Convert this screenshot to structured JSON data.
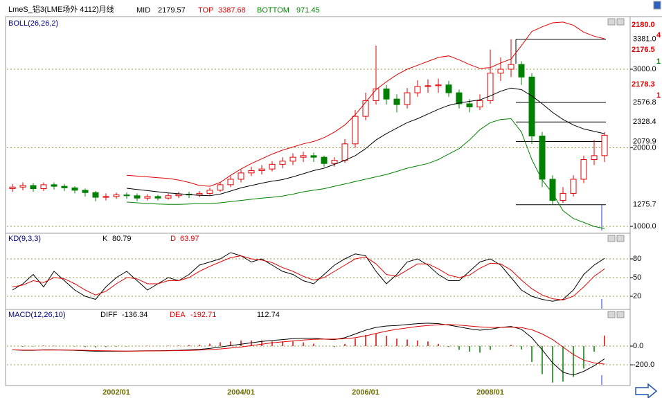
{
  "chart_data": {
    "type": "candlestick",
    "title": "LmeS_铝3(LME场外 4112)月线",
    "categories": [
      null,
      null,
      null,
      null,
      null,
      null,
      null,
      null,
      null,
      null,
      "2002/01",
      null,
      null,
      null,
      null,
      null,
      null,
      null,
      null,
      null,
      null,
      null,
      "2004/01",
      null,
      null,
      null,
      null,
      null,
      null,
      null,
      null,
      null,
      null,
      null,
      "2006/01",
      null,
      null,
      null,
      null,
      null,
      null,
      null,
      null,
      null,
      null,
      null,
      "2008/01",
      null,
      null,
      null,
      null,
      null,
      null,
      null,
      null,
      null,
      null,
      null
    ],
    "open": [
      1480,
      1500,
      1520,
      1480,
      1530,
      1510,
      1490,
      1460,
      1430,
      1370,
      1380,
      1400,
      1390,
      1360,
      1380,
      1360,
      1390,
      1410,
      1400,
      1420,
      1460,
      1530,
      1600,
      1680,
      1710,
      1730,
      1790,
      1830,
      1880,
      1900,
      1880,
      1800,
      1840,
      2050,
      2400,
      2600,
      2750,
      2620,
      2550,
      2700,
      2780,
      2790,
      2800,
      2700,
      2560,
      2520,
      2600,
      2950,
      3000,
      3060,
      2900,
      2150,
      1600,
      1330,
      1420,
      1600,
      1850,
      1900
    ],
    "close": [
      1500,
      1520,
      1480,
      1530,
      1510,
      1490,
      1460,
      1430,
      1370,
      1380,
      1400,
      1390,
      1360,
      1380,
      1360,
      1390,
      1410,
      1400,
      1420,
      1460,
      1530,
      1600,
      1680,
      1710,
      1730,
      1790,
      1830,
      1880,
      1900,
      1880,
      1800,
      1840,
      2050,
      2400,
      2600,
      2750,
      2620,
      2550,
      2700,
      2780,
      2790,
      2800,
      2700,
      2560,
      2520,
      2600,
      2950,
      3000,
      3060,
      2900,
      2150,
      1600,
      1330,
      1420,
      1600,
      1850,
      1900,
      2160
    ],
    "high": [
      1540,
      1560,
      1550,
      1560,
      1560,
      1540,
      1510,
      1480,
      1450,
      1420,
      1430,
      1430,
      1420,
      1410,
      1400,
      1420,
      1440,
      1440,
      1450,
      1490,
      1560,
      1640,
      1720,
      1760,
      1780,
      1830,
      1880,
      1930,
      1950,
      1940,
      1900,
      1880,
      2110,
      2480,
      2700,
      3300,
      2800,
      2680,
      2760,
      2860,
      2870,
      2880,
      2850,
      2740,
      2620,
      2680,
      3250,
      3150,
      3381,
      3100,
      2950,
      2200,
      1650,
      1500,
      1650,
      1900,
      2100,
      2200
    ],
    "low": [
      1440,
      1460,
      1440,
      1450,
      1470,
      1450,
      1420,
      1380,
      1320,
      1330,
      1350,
      1350,
      1320,
      1330,
      1330,
      1340,
      1360,
      1360,
      1370,
      1400,
      1440,
      1500,
      1560,
      1640,
      1660,
      1700,
      1740,
      1780,
      1820,
      1820,
      1760,
      1760,
      1810,
      2000,
      2350,
      2550,
      2550,
      2450,
      2500,
      2650,
      2700,
      2700,
      2650,
      2500,
      2450,
      2480,
      2560,
      2850,
      2900,
      2800,
      2050,
      1500,
      1276,
      1300,
      1380,
      1550,
      1780,
      1820
    ],
    "up_color": "#e00000",
    "down_color": "#008000",
    "ylim": [
      930,
      3634
    ],
    "yticks": [
      {
        "value": 1000,
        "label": "1000.0"
      },
      {
        "value": 2000,
        "label": "2000.0"
      },
      {
        "value": 3000,
        "label": "3000.0"
      }
    ],
    "levels": [
      {
        "value": 3381.0,
        "label": "3381.0"
      },
      {
        "value": 2576.8,
        "label": "2576.8"
      },
      {
        "value": 2328.4,
        "label": "2328.4"
      },
      {
        "value": 2079.9,
        "label": "2079.9"
      },
      {
        "value": 1275.7,
        "label": "1275.7"
      }
    ],
    "grid": true,
    "boll": {
      "title": "BOLL(26,26,2)",
      "series": [
        {
          "name": "TOP",
          "color": "#e00000",
          "values": [
            null,
            null,
            null,
            null,
            null,
            null,
            null,
            null,
            null,
            null,
            null,
            1650,
            1640,
            1630,
            1620,
            1610,
            1590,
            1560,
            1520,
            1510,
            1560,
            1650,
            1730,
            1800,
            1860,
            1920,
            1970,
            2010,
            2050,
            2080,
            2130,
            2200,
            2290,
            2420,
            2580,
            2740,
            2840,
            2930,
            3000,
            3050,
            3100,
            3150,
            3170,
            3120,
            3060,
            3010,
            3020,
            3080,
            3130,
            3300,
            3480,
            3540,
            3590,
            3600,
            3560,
            3470,
            3420,
            3387.68
          ]
        },
        {
          "name": "MID",
          "color": "#000000",
          "values": [
            null,
            null,
            null,
            null,
            null,
            null,
            null,
            null,
            null,
            null,
            null,
            1485,
            1470,
            1455,
            1440,
            1425,
            1415,
            1405,
            1395,
            1390,
            1410,
            1450,
            1490,
            1520,
            1550,
            1575,
            1595,
            1630,
            1670,
            1710,
            1740,
            1790,
            1840,
            1900,
            1990,
            2100,
            2180,
            2250,
            2320,
            2370,
            2430,
            2490,
            2540,
            2570,
            2590,
            2610,
            2660,
            2720,
            2760,
            2740,
            2660,
            2560,
            2450,
            2360,
            2290,
            2240,
            2210,
            2179.57
          ]
        },
        {
          "name": "BOTTOM",
          "color": "#008000",
          "values": [
            null,
            null,
            null,
            null,
            null,
            null,
            null,
            null,
            null,
            null,
            null,
            1310,
            1300,
            1290,
            1285,
            1280,
            1280,
            1285,
            1290,
            1290,
            1300,
            1315,
            1330,
            1345,
            1360,
            1370,
            1385,
            1410,
            1440,
            1460,
            1480,
            1510,
            1540,
            1570,
            1600,
            1630,
            1660,
            1700,
            1740,
            1770,
            1800,
            1850,
            1920,
            1990,
            2100,
            2230,
            2320,
            2360,
            2370,
            2200,
            1850,
            1590,
            1420,
            1200,
            1100,
            1050,
            1000,
            971.45
          ]
        }
      ]
    },
    "kd": {
      "title": "KD(9,3,3)",
      "ylim": [
        0,
        110
      ],
      "yticks": [
        20,
        50,
        80
      ],
      "series": [
        {
          "name": "K",
          "color": "#000000",
          "values": [
            30,
            40,
            55,
            35,
            60,
            45,
            30,
            20,
            15,
            35,
            50,
            60,
            45,
            30,
            40,
            50,
            45,
            55,
            70,
            75,
            80,
            90,
            85,
            75,
            80,
            70,
            60,
            55,
            45,
            40,
            55,
            70,
            80,
            88,
            85,
            60,
            40,
            55,
            75,
            80,
            70,
            55,
            45,
            45,
            60,
            75,
            80,
            70,
            50,
            30,
            20,
            15,
            12,
            15,
            30,
            55,
            70,
            80.79
          ]
        },
        {
          "name": "D",
          "color": "#e00000",
          "values": [
            35,
            38,
            45,
            42,
            50,
            48,
            40,
            30,
            22,
            28,
            40,
            50,
            48,
            40,
            40,
            45,
            45,
            50,
            60,
            68,
            75,
            82,
            85,
            80,
            78,
            74,
            66,
            60,
            52,
            46,
            50,
            60,
            70,
            80,
            83,
            72,
            55,
            52,
            62,
            72,
            72,
            64,
            54,
            50,
            54,
            65,
            73,
            72,
            62,
            46,
            32,
            22,
            16,
            14,
            20,
            35,
            52,
            63.97
          ]
        }
      ]
    },
    "macd": {
      "title": "MACD(12,26,10)",
      "ylim": [
        -407,
        311
      ],
      "yticks": [
        {
          "value": 0,
          "label": "0.0"
        },
        {
          "value": -200,
          "label": "-200.0"
        }
      ],
      "series": [
        {
          "name": "DIFF",
          "color": "#000000",
          "values": [
            -40,
            -45,
            -45,
            -40,
            -40,
            -42,
            -45,
            -50,
            -55,
            -55,
            -55,
            -55,
            -52,
            -50,
            -50,
            -48,
            -45,
            -40,
            -35,
            -25,
            -10,
            5,
            20,
            35,
            50,
            60,
            70,
            80,
            85,
            85,
            75,
            70,
            90,
            130,
            170,
            200,
            215,
            220,
            230,
            240,
            245,
            240,
            225,
            205,
            185,
            170,
            180,
            200,
            210,
            180,
            90,
            -40,
            -180,
            -280,
            -310,
            -270,
            -210,
            -136.34
          ]
        },
        {
          "name": "DEA",
          "color": "#e00000",
          "values": [
            -40,
            -42,
            -43,
            -43,
            -42,
            -42,
            -43,
            -45,
            -48,
            -50,
            -52,
            -53,
            -53,
            -52,
            -51,
            -50,
            -48,
            -46,
            -43,
            -38,
            -30,
            -20,
            -10,
            5,
            20,
            35,
            45,
            55,
            65,
            72,
            75,
            75,
            78,
            90,
            110,
            135,
            160,
            180,
            195,
            210,
            220,
            228,
            230,
            225,
            215,
            205,
            200,
            200,
            203,
            198,
            175,
            130,
            70,
            -10,
            -90,
            -150,
            -180,
            -192.71
          ]
        }
      ],
      "histogram": {
        "values": [
          0,
          -6,
          -4,
          6,
          4,
          0,
          -4,
          -10,
          -14,
          -10,
          -6,
          -4,
          2,
          4,
          2,
          4,
          6,
          12,
          16,
          26,
          40,
          50,
          60,
          60,
          60,
          50,
          50,
          50,
          40,
          26,
          0,
          -10,
          24,
          80,
          120,
          130,
          110,
          80,
          70,
          60,
          50,
          24,
          -10,
          -40,
          -60,
          -70,
          -40,
          0,
          14,
          -36,
          -170,
          -300,
          -390,
          -380,
          -330,
          -240,
          -60,
          112.74
        ]
      }
    },
    "quote": [
      {
        "text": "2180.0",
        "color": "#e00000"
      },
      {
        "text": "4",
        "color": "#e00000"
      },
      {
        "text": "2176.5",
        "color": "#e00000"
      },
      {
        "text": "1",
        "color": "#008000"
      },
      {
        "text": "2178.3",
        "color": "#e00000"
      },
      {
        "text": "1",
        "color": "#e00000"
      }
    ]
  }
}
